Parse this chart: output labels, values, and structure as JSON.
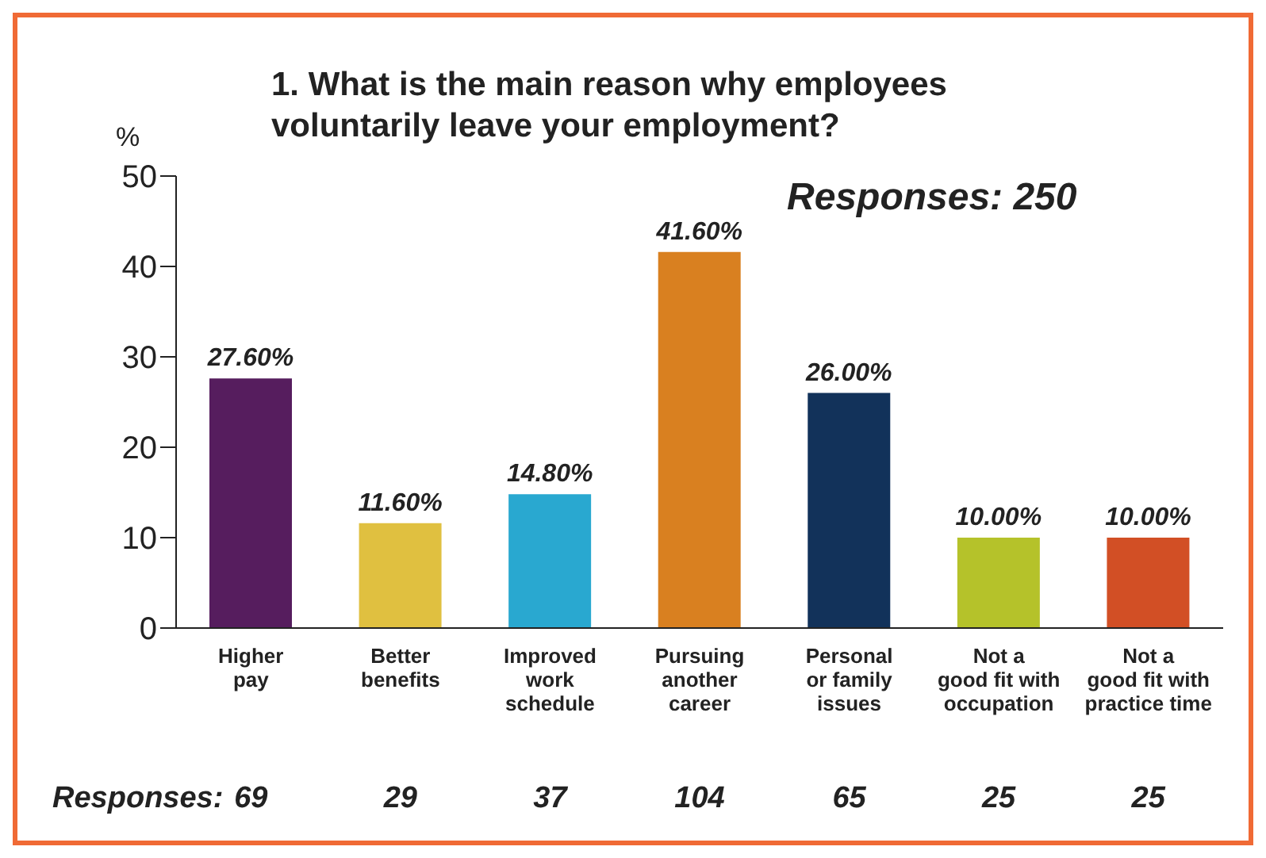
{
  "chart_data": {
    "type": "bar",
    "title": "1. What is the main reason why employees\nvoluntarily leave your employment?",
    "ylabel": "%",
    "categories": [
      "Higher\npay",
      "Better\nbenefits",
      "Improved\nwork\nschedule",
      "Pursuing\nanother\ncareer",
      "Personal\nor family\nissues",
      "Not a\ngood fit with\noccupation",
      "Not a\ngood fit with\npractice time"
    ],
    "values": [
      27.6,
      11.6,
      14.8,
      41.6,
      26.0,
      10.0,
      10.0
    ],
    "value_labels": [
      "27.60%",
      "11.60%",
      "14.80%",
      "41.60%",
      "26.00%",
      "10.00%",
      "10.00%"
    ],
    "colors": [
      "#561d5e",
      "#e0c040",
      "#29a8d0",
      "#d98020",
      "#12325a",
      "#b5c22a",
      "#d24f25"
    ],
    "ylim": [
      0,
      50
    ],
    "yticks": [
      0,
      10,
      20,
      30,
      40,
      50
    ],
    "grid": false,
    "legend": false,
    "annotations": [
      "Responses:  250",
      "Responses:",
      "69",
      "29",
      "37",
      "104",
      "65",
      "25",
      "25"
    ]
  }
}
